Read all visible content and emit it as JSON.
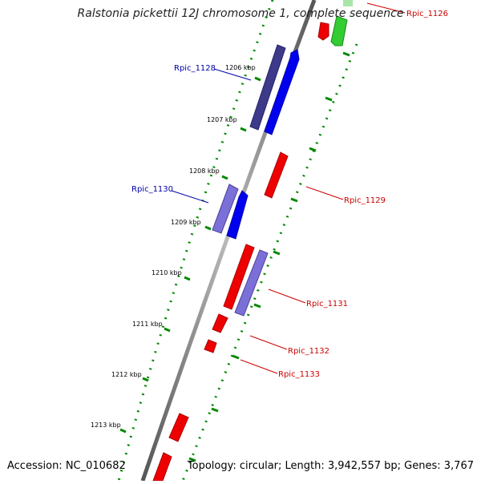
{
  "header": {
    "title": "Ralstonia pickettii 12J chromosome 1, complete sequence"
  },
  "footer": {
    "accession": "Accession: NC_010682",
    "summary": "Topology: circular; Length: 3,942,557 bp; Genes: 3,767"
  },
  "ticks": [
    {
      "label": "1206 kbp"
    },
    {
      "label": "1207 kbp"
    },
    {
      "label": "1208 kbp"
    },
    {
      "label": "1209 kbp"
    },
    {
      "label": "1210 kbp"
    },
    {
      "label": "1211 kbp"
    },
    {
      "label": "1212 kbp"
    },
    {
      "label": "1213 kbp"
    }
  ],
  "gene_labels": [
    {
      "name": "Rpic_1126",
      "color": "#cc0000"
    },
    {
      "name": "Rpic_1128",
      "color": "#0000aa"
    },
    {
      "name": "Rpic_1129",
      "color": "#cc0000"
    },
    {
      "name": "Rpic_1130",
      "color": "#0000aa"
    },
    {
      "name": "Rpic_1131",
      "color": "#cc0000"
    },
    {
      "name": "Rpic_1132",
      "color": "#cc0000"
    },
    {
      "name": "Rpic_1133",
      "color": "#cc0000"
    }
  ],
  "colors": {
    "cds_forward": "#ff0000",
    "cds_reverse": "#0000ff",
    "cog_dark_blue": "#3d3a8a",
    "cog_light_blue": "#7b70d8",
    "rna_green": "#33cc33",
    "gc_dots": "#008800",
    "backbone": "#777777"
  }
}
